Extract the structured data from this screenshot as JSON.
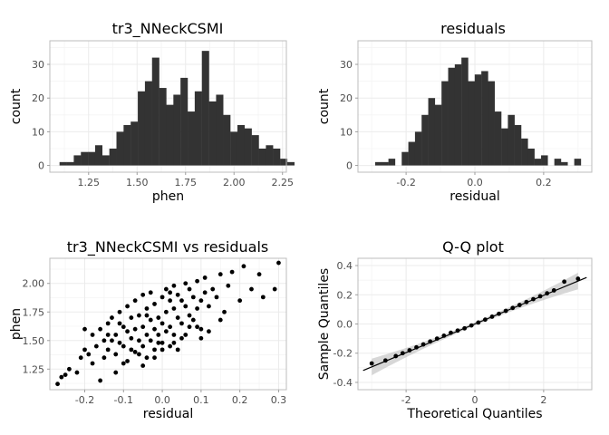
{
  "chart_data": [
    {
      "type": "bar",
      "title": "tr3_NNeckCSMI",
      "xlabel": "phen",
      "ylabel": "count",
      "xlim": [
        1.05,
        2.27
      ],
      "ylim": [
        -2,
        37
      ],
      "xticks": [
        1.25,
        1.5,
        1.75,
        2.0,
        2.25
      ],
      "xtick_labels": [
        "1.25",
        "1.50",
        "1.75",
        "2.00",
        "2.25"
      ],
      "yticks": [
        0,
        10,
        20,
        30
      ],
      "ytick_labels": [
        "0",
        "10",
        "20",
        "30"
      ],
      "bin_start": 1.1,
      "bin_width": 0.0367,
      "values": [
        1,
        1,
        3,
        4,
        4,
        6,
        3,
        5,
        10,
        12,
        13,
        22,
        25,
        32,
        23,
        18,
        21,
        26,
        16,
        22,
        34,
        19,
        21,
        15,
        10,
        12,
        11,
        9,
        5,
        6,
        5,
        2,
        1
      ],
      "color": "#333333",
      "grid": true
    },
    {
      "type": "bar",
      "title": "residuals",
      "xlabel": "residual",
      "ylabel": "count",
      "xlim": [
        -0.34,
        0.34
      ],
      "ylim": [
        -2,
        37
      ],
      "xticks": [
        -0.2,
        0.0,
        0.2
      ],
      "xtick_labels": [
        "-0.2",
        "0.0",
        "0.2"
      ],
      "yticks": [
        0,
        10,
        20,
        30
      ],
      "ytick_labels": [
        "0",
        "10",
        "20",
        "30"
      ],
      "bin_start": -0.29,
      "bin_width": 0.0193,
      "values": [
        1,
        1,
        2,
        0,
        4,
        7,
        10,
        15,
        20,
        18,
        25,
        29,
        30,
        32,
        25,
        27,
        28,
        25,
        16,
        11,
        15,
        12,
        8,
        5,
        2,
        3,
        0,
        2,
        1,
        0,
        2
      ],
      "color": "#333333",
      "grid": true
    },
    {
      "type": "scatter",
      "title": "tr3_NNeckCSMI vs residuals",
      "xlabel": "residual",
      "ylabel": "phen",
      "xlim": [
        -0.29,
        0.32
      ],
      "ylim": [
        1.07,
        2.22
      ],
      "xticks": [
        -0.2,
        -0.1,
        0.0,
        0.1,
        0.2,
        0.3
      ],
      "xtick_labels": [
        "-0.2",
        "-0.1",
        "0.0",
        "0.1",
        "0.2",
        "0.3"
      ],
      "yticks": [
        1.25,
        1.5,
        1.75,
        2.0
      ],
      "ytick_labels": [
        "1.25",
        "1.50",
        "1.75",
        "2.00"
      ],
      "x": [
        -0.27,
        -0.26,
        -0.25,
        -0.24,
        -0.22,
        -0.21,
        -0.2,
        -0.19,
        -0.18,
        -0.18,
        -0.17,
        -0.16,
        -0.15,
        -0.15,
        -0.14,
        -0.14,
        -0.13,
        -0.13,
        -0.12,
        -0.12,
        -0.11,
        -0.11,
        -0.1,
        -0.1,
        -0.1,
        -0.09,
        -0.09,
        -0.08,
        -0.08,
        -0.08,
        -0.07,
        -0.07,
        -0.06,
        -0.06,
        -0.06,
        -0.05,
        -0.05,
        -0.05,
        -0.04,
        -0.04,
        -0.04,
        -0.03,
        -0.03,
        -0.03,
        -0.02,
        -0.02,
        -0.02,
        -0.01,
        -0.01,
        0.0,
        0.0,
        0.0,
        0.01,
        0.01,
        0.01,
        0.02,
        0.02,
        0.02,
        0.03,
        0.03,
        0.03,
        0.04,
        0.04,
        0.05,
        0.05,
        0.05,
        0.06,
        0.06,
        0.07,
        0.07,
        0.08,
        0.08,
        0.09,
        0.09,
        0.1,
        0.1,
        0.11,
        0.11,
        0.12,
        0.13,
        0.14,
        0.15,
        0.16,
        0.17,
        0.18,
        0.2,
        0.21,
        0.23,
        0.25,
        0.26,
        0.29,
        0.3,
        -0.16,
        -0.12,
        -0.09,
        -0.07,
        -0.05,
        -0.02,
        0.0,
        0.03,
        0.06,
        0.09,
        0.12,
        -0.11,
        -0.04,
        0.04,
        0.1,
        0.15,
        -0.2,
        -0.14,
        -0.01,
        0.07,
        0.02
      ],
      "y": [
        1.12,
        1.18,
        1.2,
        1.25,
        1.22,
        1.35,
        1.42,
        1.38,
        1.55,
        1.3,
        1.45,
        1.6,
        1.5,
        1.35,
        1.65,
        1.42,
        1.7,
        1.5,
        1.55,
        1.38,
        1.75,
        1.48,
        1.62,
        1.45,
        1.3,
        1.8,
        1.58,
        1.52,
        1.7,
        1.42,
        1.85,
        1.6,
        1.5,
        1.72,
        1.38,
        1.9,
        1.62,
        1.45,
        1.55,
        1.78,
        1.35,
        1.68,
        1.92,
        1.5,
        1.6,
        1.82,
        1.42,
        1.7,
        1.55,
        1.88,
        1.65,
        1.48,
        1.75,
        1.95,
        1.58,
        1.62,
        1.85,
        1.45,
        1.78,
        1.98,
        1.55,
        1.7,
        1.9,
        1.65,
        1.85,
        1.52,
        1.8,
        2.0,
        1.72,
        1.95,
        1.68,
        1.88,
        1.78,
        2.02,
        1.85,
        1.6,
        1.92,
        2.05,
        1.8,
        1.95,
        1.88,
        2.08,
        1.75,
        1.98,
        2.1,
        1.85,
        2.15,
        1.95,
        2.08,
        1.88,
        1.95,
        2.18,
        1.15,
        1.22,
        1.32,
        1.4,
        1.28,
        1.35,
        1.42,
        1.48,
        1.55,
        1.62,
        1.58,
        1.65,
        1.72,
        1.42,
        1.52,
        1.68,
        1.6,
        1.55,
        1.48,
        1.62,
        1.92
      ],
      "color": "#000000",
      "grid": true
    },
    {
      "type": "scatter",
      "title": "Q-Q plot",
      "xlabel": "Theoretical Quantiles",
      "ylabel": "Sample Quantiles",
      "xlim": [
        -3.4,
        3.4
      ],
      "ylim": [
        -0.45,
        0.45
      ],
      "xticks": [
        -2,
        0,
        2
      ],
      "xtick_labels": [
        "-2",
        "0",
        "2"
      ],
      "yticks": [
        -0.4,
        -0.2,
        0.0,
        0.2,
        0.4
      ],
      "ytick_labels": [
        "-0.4",
        "-0.2",
        "0.0",
        "0.2",
        "0.4"
      ],
      "x": [
        -3.0,
        -2.6,
        -2.3,
        -2.1,
        -1.9,
        -1.7,
        -1.5,
        -1.3,
        -1.1,
        -0.9,
        -0.7,
        -0.5,
        -0.3,
        -0.1,
        0.1,
        0.3,
        0.5,
        0.7,
        0.9,
        1.1,
        1.3,
        1.5,
        1.7,
        1.9,
        2.1,
        2.3,
        2.6,
        3.0
      ],
      "y": [
        -0.27,
        -0.25,
        -0.22,
        -0.2,
        -0.18,
        -0.16,
        -0.14,
        -0.12,
        -0.1,
        -0.08,
        -0.06,
        -0.045,
        -0.03,
        -0.01,
        0.01,
        0.03,
        0.05,
        0.07,
        0.09,
        0.11,
        0.13,
        0.15,
        0.17,
        0.19,
        0.21,
        0.23,
        0.29,
        0.31
      ],
      "reference_line": {
        "slope": 0.098,
        "intercept": 0.0
      },
      "confidence_band": true,
      "color": "#000000",
      "grid": true
    }
  ]
}
